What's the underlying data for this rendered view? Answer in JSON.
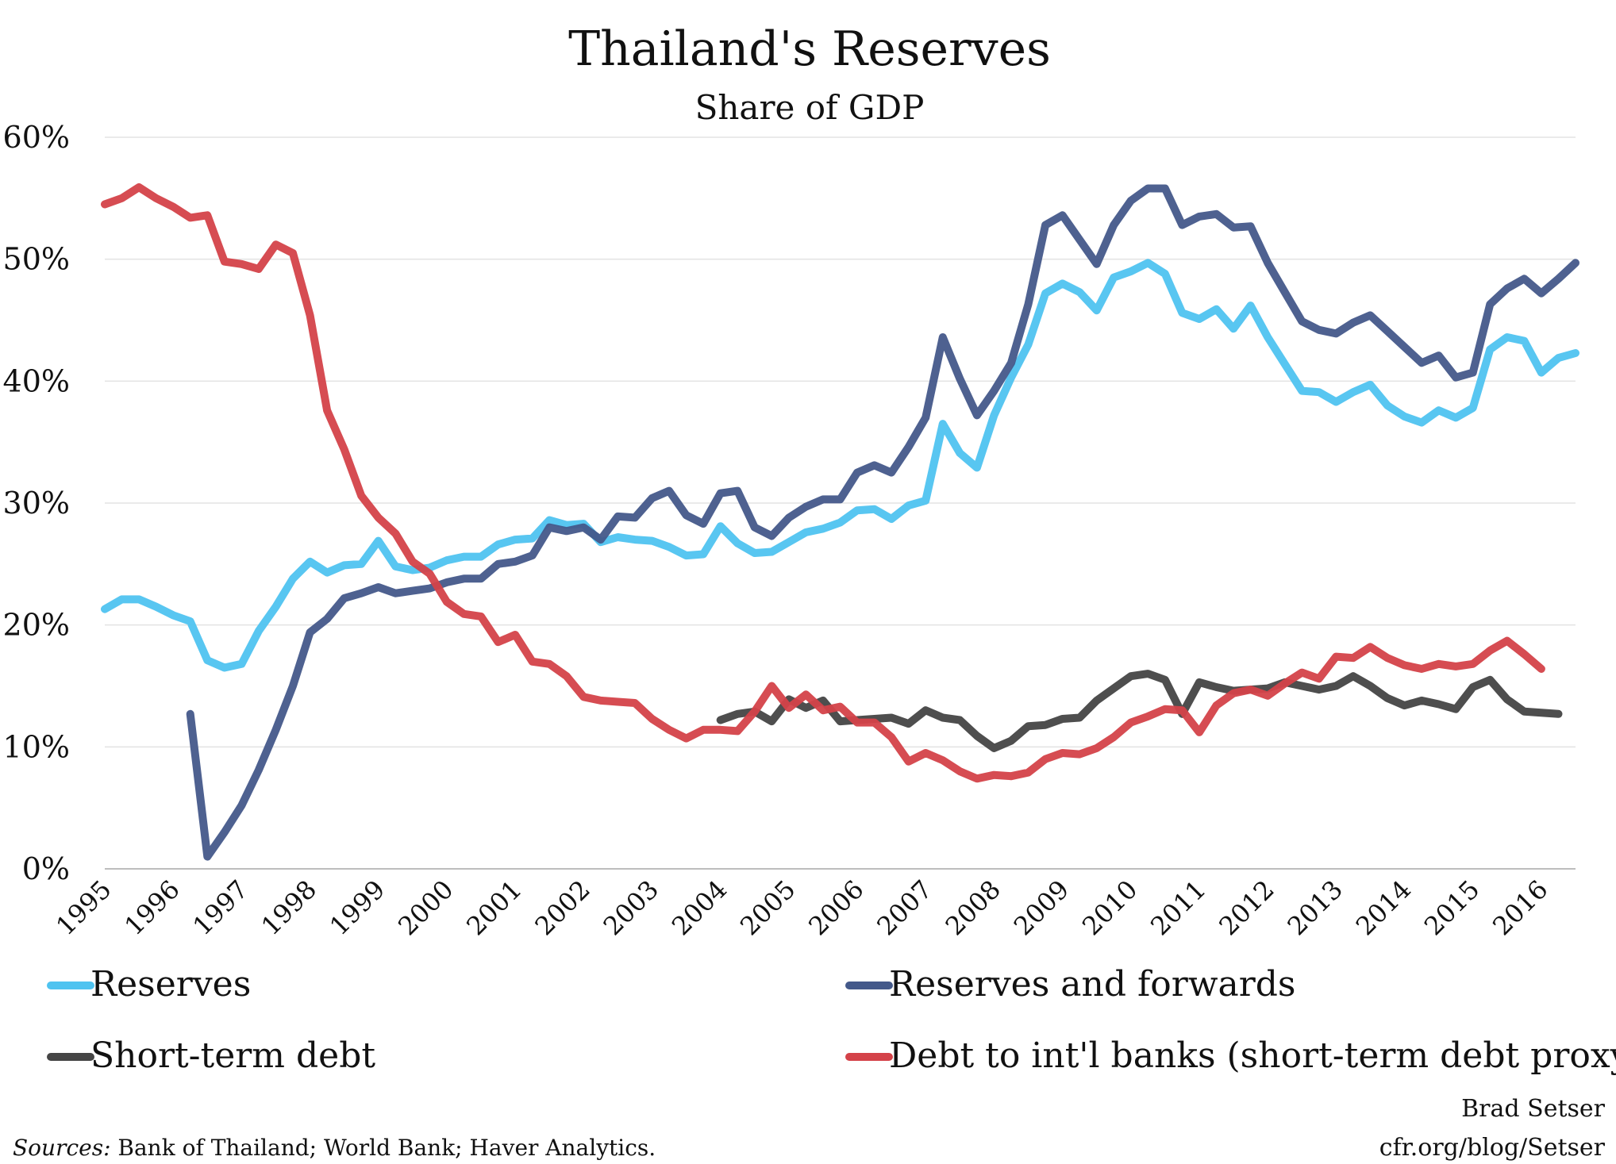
{
  "chart_data": {
    "type": "line",
    "title": "Thailand's Reserves",
    "subtitle": "Share of GDP",
    "xlabel": "",
    "ylabel": "",
    "xlim": [
      1995,
      2016.5
    ],
    "ylim": [
      0,
      60
    ],
    "y_ticks": [
      "0%",
      "10%",
      "20%",
      "30%",
      "40%",
      "50%",
      "60%"
    ],
    "x_ticks": [
      "1995",
      "1996",
      "1997",
      "1998",
      "1999",
      "2000",
      "2001",
      "2002",
      "2003",
      "2004",
      "2005",
      "2006",
      "2007",
      "2008",
      "2009",
      "2010",
      "2011",
      "2012",
      "2013",
      "2014",
      "2015",
      "2016"
    ],
    "grid": true,
    "legend_position": "bottom",
    "series": [
      {
        "name": "Reserves",
        "color": "#4FC3F0",
        "x": [
          1995,
          1995.25,
          1995.5,
          1995.75,
          1996,
          1996.25,
          1996.5,
          1996.75,
          1997,
          1997.25,
          1997.5,
          1997.75,
          1998,
          1998.25,
          1998.5,
          1998.75,
          1999,
          1999.25,
          1999.5,
          1999.75,
          2000,
          2000.25,
          2000.5,
          2000.75,
          2001,
          2001.25,
          2001.5,
          2001.75,
          2002,
          2002.25,
          2002.5,
          2002.75,
          2003,
          2003.25,
          2003.5,
          2003.75,
          2004,
          2004.25,
          2004.5,
          2004.75,
          2005,
          2005.25,
          2005.5,
          2005.75,
          2006,
          2006.25,
          2006.5,
          2006.75,
          2007,
          2007.25,
          2007.5,
          2007.75,
          2008,
          2008.25,
          2008.5,
          2008.75,
          2009,
          2009.25,
          2009.5,
          2009.75,
          2010,
          2010.25,
          2010.5,
          2010.75,
          2011,
          2011.25,
          2011.5,
          2011.75,
          2012,
          2012.25,
          2012.5,
          2012.75,
          2013,
          2013.25,
          2013.5,
          2013.75,
          2014,
          2014.25,
          2014.5,
          2014.75,
          2015,
          2015.25,
          2015.5,
          2015.75,
          2016,
          2016.25,
          2016.5
        ],
        "values": [
          21.3,
          22.1,
          22.1,
          21.5,
          20.8,
          20.3,
          17.1,
          16.5,
          16.8,
          19.5,
          21.5,
          23.8,
          25.2,
          24.3,
          24.9,
          25.0,
          26.9,
          24.8,
          24.5,
          24.7,
          25.3,
          25.6,
          25.6,
          26.6,
          27.0,
          27.1,
          28.6,
          28.2,
          28.3,
          26.8,
          27.2,
          27.0,
          26.9,
          26.4,
          25.7,
          25.8,
          28.1,
          26.7,
          25.9,
          26.0,
          26.8,
          27.6,
          27.9,
          28.4,
          29.4,
          29.5,
          28.7,
          29.8,
          30.2,
          36.5,
          34.1,
          32.9,
          37.2,
          40.3,
          43.0,
          47.2,
          48.0,
          47.3,
          45.8,
          48.5,
          49.0,
          49.7,
          48.8,
          45.6,
          45.1,
          45.9,
          44.3,
          46.2,
          43.6,
          41.4,
          39.2,
          39.1,
          38.3,
          39.1,
          39.7,
          38.0,
          37.1,
          36.6,
          37.6,
          37.0,
          37.8,
          42.6,
          43.6,
          43.3,
          40.7,
          41.9,
          42.3
        ]
      },
      {
        "name": "Reserves and forwards",
        "color": "#44598A",
        "x": [
          1996.25,
          1996.5,
          1996.75,
          1997,
          1997.25,
          1997.5,
          1997.75,
          1998,
          1998.25,
          1998.5,
          1998.75,
          1999,
          1999.25,
          1999.5,
          1999.75,
          2000,
          2000.25,
          2000.5,
          2000.75,
          2001,
          2001.25,
          2001.5,
          2001.75,
          2002,
          2002.25,
          2002.5,
          2002.75,
          2003,
          2003.25,
          2003.5,
          2003.75,
          2004,
          2004.25,
          2004.5,
          2004.75,
          2005,
          2005.25,
          2005.5,
          2005.75,
          2006,
          2006.25,
          2006.5,
          2006.75,
          2007,
          2007.25,
          2007.5,
          2007.75,
          2008,
          2008.25,
          2008.5,
          2008.75,
          2009,
          2009.25,
          2009.5,
          2009.75,
          2010,
          2010.25,
          2010.5,
          2010.75,
          2011,
          2011.25,
          2011.5,
          2011.75,
          2012,
          2012.25,
          2012.5,
          2012.75,
          2013,
          2013.25,
          2013.5,
          2013.75,
          2014,
          2014.25,
          2014.5,
          2014.75,
          2015,
          2015.25,
          2015.5,
          2015.75,
          2016,
          2016.25,
          2016.5
        ],
        "values": [
          12.7,
          1.0,
          3.0,
          5.2,
          8.1,
          11.4,
          15.0,
          19.4,
          20.5,
          22.2,
          22.6,
          23.1,
          22.6,
          22.8,
          23.0,
          23.5,
          23.8,
          23.8,
          25.0,
          25.2,
          25.7,
          28.0,
          27.7,
          28.0,
          27.0,
          28.9,
          28.8,
          30.4,
          31.0,
          29.0,
          28.3,
          30.8,
          31.0,
          28.0,
          27.3,
          28.8,
          29.7,
          30.3,
          30.3,
          32.5,
          33.1,
          32.5,
          34.6,
          37.0,
          43.6,
          40.2,
          37.2,
          39.2,
          41.5,
          46.3,
          52.8,
          53.6,
          51.6,
          49.6,
          52.8,
          54.8,
          55.8,
          55.8,
          52.8,
          53.5,
          53.7,
          52.6,
          52.7,
          49.7,
          47.3,
          44.9,
          44.2,
          43.9,
          44.8,
          45.4,
          44.1,
          42.8,
          41.5,
          42.1,
          40.3,
          40.7,
          46.3,
          47.6,
          48.4,
          47.2,
          48.4,
          49.7
        ]
      },
      {
        "name": "Short-term debt",
        "color": "#454545",
        "x": [
          2004,
          2004.25,
          2004.5,
          2004.75,
          2005,
          2005.25,
          2005.5,
          2005.75,
          2006,
          2006.25,
          2006.5,
          2006.75,
          2007,
          2007.25,
          2007.5,
          2007.75,
          2008,
          2008.25,
          2008.5,
          2008.75,
          2009,
          2009.25,
          2009.5,
          2009.75,
          2010,
          2010.25,
          2010.5,
          2010.75,
          2011,
          2011.25,
          2011.5,
          2011.75,
          2012,
          2012.25,
          2012.5,
          2012.75,
          2013,
          2013.25,
          2013.5,
          2013.75,
          2014,
          2014.25,
          2014.5,
          2014.75,
          2015,
          2015.25,
          2015.5,
          2015.75,
          2016,
          2016.25
        ],
        "values": [
          12.2,
          12.7,
          12.9,
          12.1,
          13.9,
          13.2,
          13.8,
          12.1,
          12.2,
          12.3,
          12.4,
          11.9,
          13.0,
          12.4,
          12.2,
          10.9,
          9.9,
          10.5,
          11.7,
          11.8,
          12.3,
          12.4,
          13.8,
          14.8,
          15.8,
          16.0,
          15.5,
          12.7,
          15.3,
          14.9,
          14.6,
          14.7,
          14.8,
          15.3,
          15.0,
          14.7,
          15.0,
          15.8,
          15.0,
          14.0,
          13.4,
          13.8,
          13.5,
          13.1,
          14.9,
          15.5,
          13.9,
          12.9,
          12.8,
          12.7
        ]
      },
      {
        "name": "Debt to int'l banks (short-term debt proxy)",
        "color": "#D44249",
        "x": [
          1995,
          1995.25,
          1995.5,
          1995.75,
          1996,
          1996.25,
          1996.5,
          1996.75,
          1997,
          1997.25,
          1997.5,
          1997.75,
          1998,
          1998.25,
          1998.5,
          1998.75,
          1999,
          1999.25,
          1999.5,
          1999.75,
          2000,
          2000.25,
          2000.5,
          2000.75,
          2001,
          2001.25,
          2001.5,
          2001.75,
          2002,
          2002.25,
          2002.5,
          2002.75,
          2003,
          2003.25,
          2003.5,
          2003.75,
          2004,
          2004.25,
          2004.5,
          2004.75,
          2005,
          2005.25,
          2005.5,
          2005.75,
          2006,
          2006.25,
          2006.5,
          2006.75,
          2007,
          2007.25,
          2007.5,
          2007.75,
          2008,
          2008.25,
          2008.5,
          2008.75,
          2009,
          2009.25,
          2009.5,
          2009.75,
          2010,
          2010.25,
          2010.5,
          2010.75,
          2011,
          2011.25,
          2011.5,
          2011.75,
          2012,
          2012.25,
          2012.5,
          2012.75,
          2013,
          2013.25,
          2013.5,
          2013.75,
          2014,
          2014.25,
          2014.5,
          2014.75,
          2015,
          2015.25,
          2015.5,
          2015.75,
          2016
        ],
        "values": [
          54.5,
          55.0,
          55.9,
          55.0,
          54.3,
          53.4,
          53.6,
          49.8,
          49.6,
          49.2,
          51.2,
          50.5,
          45.4,
          37.6,
          34.4,
          30.6,
          28.8,
          27.5,
          25.2,
          24.2,
          21.9,
          20.9,
          20.7,
          18.6,
          19.2,
          17.0,
          16.8,
          15.8,
          14.1,
          13.8,
          13.7,
          13.6,
          12.3,
          11.4,
          10.7,
          11.4,
          11.4,
          11.3,
          12.9,
          15.0,
          13.2,
          14.3,
          13.0,
          13.3,
          12.0,
          12.0,
          10.8,
          8.8,
          9.5,
          8.9,
          8.0,
          7.4,
          7.7,
          7.6,
          7.9,
          9.0,
          9.5,
          9.4,
          9.9,
          10.8,
          12.0,
          12.5,
          13.1,
          13.0,
          11.2,
          13.4,
          14.4,
          14.7,
          14.2,
          15.2,
          16.1,
          15.6,
          17.4,
          17.3,
          18.2,
          17.3,
          16.7,
          16.4,
          16.8,
          16.6,
          16.8,
          17.9,
          18.7,
          17.6,
          16.4
        ]
      }
    ]
  },
  "credit": {
    "author": "Brad Setser",
    "url": "cfr.org/blog/Setser"
  },
  "sources": {
    "label": "Sources:",
    "text": " Bank of Thailand; World Bank; Haver Analytics."
  }
}
